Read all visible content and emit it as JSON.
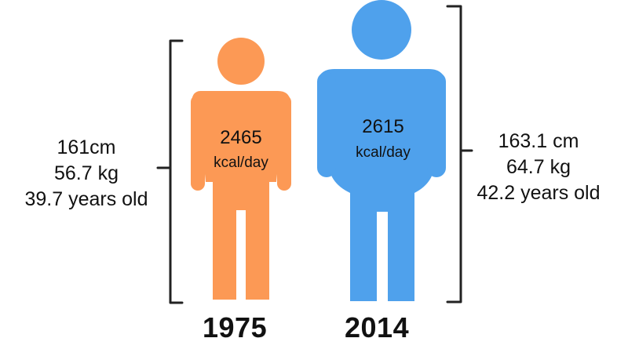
{
  "colors": {
    "figure_1975": "#FC9955",
    "figure_2014": "#4FA1EC",
    "bracket": "#222222",
    "text": "#111111"
  },
  "icons": {
    "figure_1975": "person-icon",
    "figure_2014": "person-icon"
  },
  "figure_1975": {
    "year": "1975",
    "kcal_value": "2465",
    "kcal_unit": "kcal/day",
    "height": "161cm",
    "weight": "56.7 kg",
    "age": "39.7 years old"
  },
  "figure_2014": {
    "year": "2014",
    "kcal_value": "2615",
    "kcal_unit": "kcal/day",
    "height": "163.1 cm",
    "weight": "64.7 kg",
    "age": "42.2 years old"
  }
}
